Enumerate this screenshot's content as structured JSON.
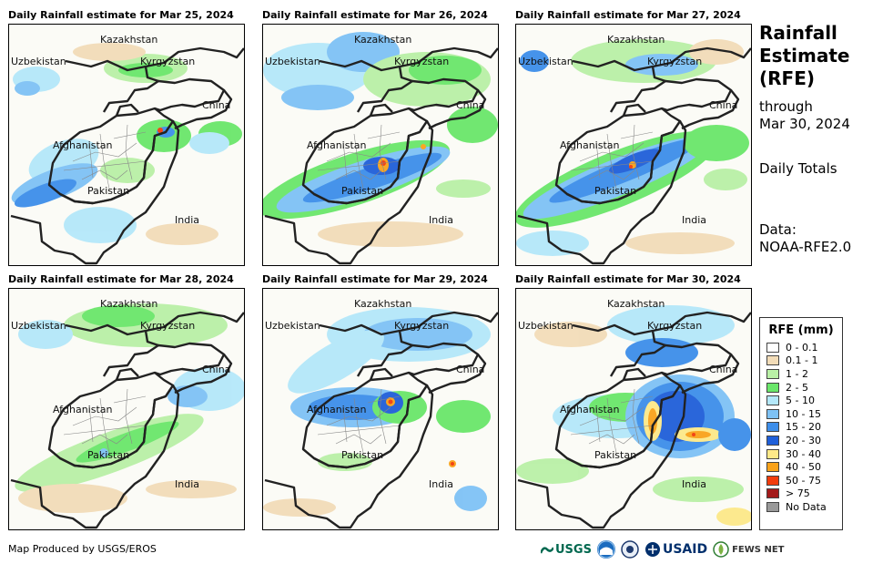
{
  "panels": [
    {
      "title": "Daily Rainfall estimate for Mar 25, 2024"
    },
    {
      "title": "Daily Rainfall estimate for Mar 26, 2024"
    },
    {
      "title": "Daily Rainfall estimate for Mar 27, 2024"
    },
    {
      "title": "Daily Rainfall estimate for Mar 28, 2024"
    },
    {
      "title": "Daily Rainfall estimate for Mar 29, 2024"
    },
    {
      "title": "Daily Rainfall estimate for Mar 30, 2024"
    }
  ],
  "map_labels": {
    "kazakhstan": "Kazakhstan",
    "uzbekistan": "Uzbekistan",
    "kyrgyzstan": "Kyrgyzstan",
    "china": "China",
    "afghanistan": "Afghanistan",
    "pakistan": "Pakistan",
    "india": "India"
  },
  "side": {
    "title_line1": "Rainfall",
    "title_line2": "Estimate",
    "title_line3": "(RFE)",
    "through": "through",
    "date": "Mar 30, 2024",
    "totals": "Daily Totals",
    "data_label": "Data:",
    "data_source": "NOAA-RFE2.0"
  },
  "legend": {
    "title": "RFE (mm)",
    "items": [
      {
        "label": "0 - 0.1",
        "color": "#ffffff"
      },
      {
        "label": "0.1 - 1",
        "color": "#f2dcb8"
      },
      {
        "label": "1 - 2",
        "color": "#b9f0a6"
      },
      {
        "label": "2 - 5",
        "color": "#6ae66a"
      },
      {
        "label": "5 - 10",
        "color": "#b4e8fa"
      },
      {
        "label": "10 - 15",
        "color": "#7ec2f5"
      },
      {
        "label": "15 - 20",
        "color": "#3d8eea"
      },
      {
        "label": "20 - 30",
        "color": "#1f5fd9"
      },
      {
        "label": "30 - 40",
        "color": "#fde989"
      },
      {
        "label": "40 - 50",
        "color": "#f9a21a"
      },
      {
        "label": "50 - 75",
        "color": "#f23c0c"
      },
      {
        "label": "> 75",
        "color": "#a31a1a"
      },
      {
        "label": "No Data",
        "color": "#999999"
      }
    ]
  },
  "footer": "Map Produced by USGS/EROS",
  "logos": {
    "usgs": "USGS",
    "noaa": "NOAA",
    "usaid": "USAID",
    "fewsnet": "FEWS NET"
  }
}
